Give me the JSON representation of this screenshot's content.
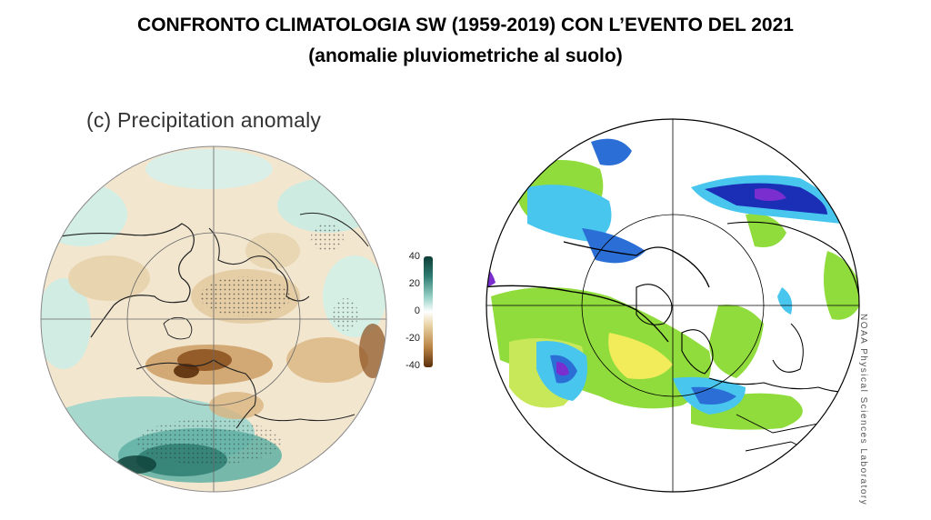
{
  "slide": {
    "title_line1": "CONFRONTO CLIMATOLOGIA SW (1959-2019) CON L’EVENTO DEL 2021",
    "title_line2": "(anomalie pluviometriche al suolo)"
  },
  "left_map": {
    "panel_label": "(c) Precipitation anomaly",
    "colorbar": {
      "ticks": [
        "40",
        "20",
        "0",
        "-20",
        "-40"
      ],
      "colors": [
        "#0d3d36",
        "#2f7c72",
        "#9fd6cc",
        "#ffffff",
        "#e9d3a6",
        "#b98444",
        "#5a2e0b"
      ]
    }
  },
  "right_map": {
    "credit": "NOAA Physical Sciences Laboratory",
    "palette": {
      "light-green": "#8fdc3c",
      "yellow-green": "#c8e85a",
      "yellow": "#f3ec5a",
      "cyan": "#49c6ee",
      "blue": "#2b6fd6",
      "dark-blue": "#1a2fb5",
      "purple": "#7b2ed0"
    }
  }
}
